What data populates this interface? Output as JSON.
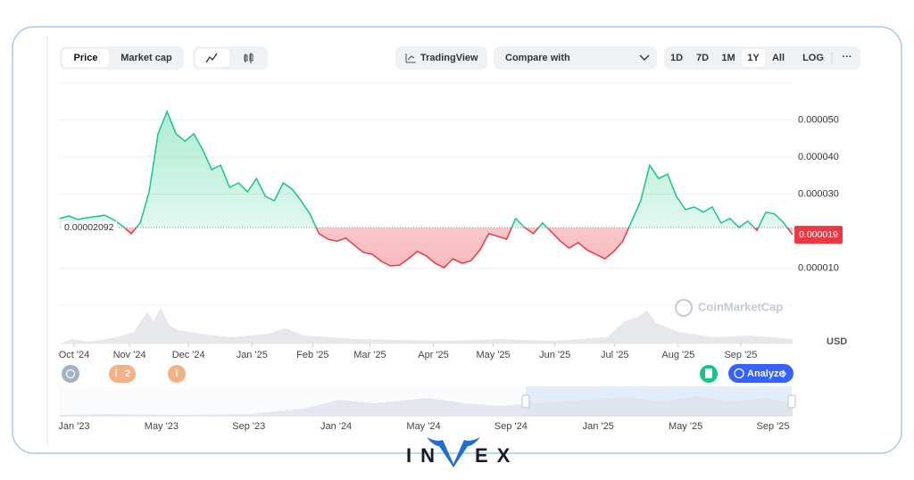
{
  "toolbar": {
    "tabs": [
      "Price",
      "Market cap"
    ],
    "trading_view": "TradingView",
    "compare": "Compare with",
    "ranges": [
      "1D",
      "7D",
      "1M",
      "1Y",
      "All",
      "LOG"
    ],
    "more": "···"
  },
  "chart_data": {
    "type": "line",
    "values": [
      2.34e-05,
      2.41e-05,
      2.31e-05,
      2.36e-05,
      2.39e-05,
      2.43e-05,
      2.31e-05,
      2.14e-05,
      1.93e-05,
      2.22e-05,
      3.06e-05,
      4.63e-05,
      5.23e-05,
      4.63e-05,
      4.43e-05,
      4.63e-05,
      4.19e-05,
      3.66e-05,
      3.78e-05,
      3.18e-05,
      3.3e-05,
      3.06e-05,
      3.42e-05,
      2.94e-05,
      2.82e-05,
      3.3e-05,
      3.13e-05,
      2.82e-05,
      2.46e-05,
      1.93e-05,
      1.78e-05,
      1.73e-05,
      1.81e-05,
      1.61e-05,
      1.42e-05,
      1.37e-05,
      1.18e-05,
      1.06e-05,
      1.08e-05,
      1.25e-05,
      1.45e-05,
      1.33e-05,
      1.13e-05,
      1.01e-05,
      1.25e-05,
      1.13e-05,
      1.2e-05,
      1.49e-05,
      1.93e-05,
      1.86e-05,
      1.78e-05,
      2.34e-05,
      2.1e-05,
      1.93e-05,
      2.22e-05,
      1.98e-05,
      1.73e-05,
      1.54e-05,
      1.69e-05,
      1.49e-05,
      1.37e-05,
      1.25e-05,
      1.45e-05,
      1.73e-05,
      2.27e-05,
      2.82e-05,
      3.78e-05,
      3.42e-05,
      3.54e-05,
      2.94e-05,
      2.58e-05,
      2.65e-05,
      2.51e-05,
      2.65e-05,
      2.22e-05,
      2.34e-05,
      2.1e-05,
      2.27e-05,
      2.02e-05,
      2.51e-05,
      2.46e-05,
      2.22e-05,
      1.9e-05
    ],
    "up_color": "#16c784",
    "down_color": "#ea3943",
    "xlim": [
      0,
      82
    ],
    "xticks": [
      {
        "value": 1.6,
        "label": "Oct '24"
      },
      {
        "value": 7.8,
        "label": "Nov '24"
      },
      {
        "value": 14.4,
        "label": "Dec '24"
      },
      {
        "value": 21.5,
        "label": "Jan '25"
      },
      {
        "value": 28.3,
        "label": "Feb '25"
      },
      {
        "value": 34.7,
        "label": "Mar '25"
      },
      {
        "value": 41.8,
        "label": "Apr '25"
      },
      {
        "value": 48.5,
        "label": "May '25"
      },
      {
        "value": 55.4,
        "label": "Jun '25"
      },
      {
        "value": 62.1,
        "label": "Jul '25"
      },
      {
        "value": 69.2,
        "label": "Aug '25"
      },
      {
        "value": 76.2,
        "label": "Sep '25"
      }
    ],
    "ylim": [
      0,
      6e-05
    ],
    "yticks": [
      {
        "value": 1e-05,
        "label": "0.000010"
      },
      {
        "value": 3e-05,
        "label": "0.000030"
      },
      {
        "value": 4e-05,
        "label": "0.000040"
      },
      {
        "value": 5e-05,
        "label": "0.000050"
      }
    ],
    "baseline": {
      "value": 2.092e-05,
      "label": "0.00002092"
    },
    "last_price": {
      "value": 1.9e-05,
      "label": "0.000019"
    },
    "currency": "USD",
    "watermark": "CoinMarketCap"
  },
  "events": {
    "count": "2",
    "analyze": "Analyze"
  },
  "navigator": {
    "labels": [
      "Jan '23",
      "May '23",
      "Sep '23",
      "Jan '24",
      "May '24",
      "Sep '24",
      "Jan '25",
      "May '25",
      "Sep '25"
    ]
  },
  "brand": {
    "left": "IN",
    "right": "EX"
  }
}
